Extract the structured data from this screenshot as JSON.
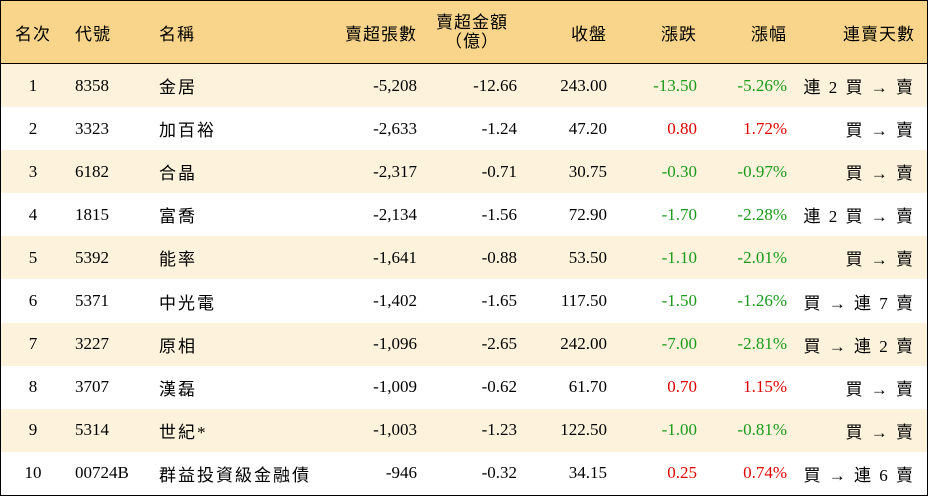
{
  "table": {
    "columns": [
      "名次",
      "代號",
      "名稱",
      "賣超張數",
      {
        "text": "賣超金額",
        "sub": "（億）"
      },
      "收盤",
      "漲跌",
      "漲幅",
      "連賣天數"
    ],
    "rows": [
      [
        "1",
        "8358",
        "金居",
        "-5,208",
        "-12.66",
        "243.00",
        "-13.50",
        "-5.26%",
        "連 2 買 → 賣"
      ],
      [
        "2",
        "3323",
        "加百裕",
        "-2,633",
        "-1.24",
        "47.20",
        "0.80",
        "1.72%",
        "買 → 賣"
      ],
      [
        "3",
        "6182",
        "合晶",
        "-2,317",
        "-0.71",
        "30.75",
        "-0.30",
        "-0.97%",
        "買 → 賣"
      ],
      [
        "4",
        "1815",
        "富喬",
        "-2,134",
        "-1.56",
        "72.90",
        "-1.70",
        "-2.28%",
        "連 2 買 → 賣"
      ],
      [
        "5",
        "5392",
        "能率",
        "-1,641",
        "-0.88",
        "53.50",
        "-1.10",
        "-2.01%",
        "買 → 賣"
      ],
      [
        "6",
        "5371",
        "中光電",
        "-1,402",
        "-1.65",
        "117.50",
        "-1.50",
        "-1.26%",
        "買 → 連 7 賣"
      ],
      [
        "7",
        "3227",
        "原相",
        "-1,096",
        "-2.65",
        "242.00",
        "-7.00",
        "-2.81%",
        "買 → 連 2 賣"
      ],
      [
        "8",
        "3707",
        "漢磊",
        "-1,009",
        "-0.62",
        "61.70",
        "0.70",
        "1.15%",
        "買 → 賣"
      ],
      [
        "9",
        "5314",
        "世紀*",
        "-1,003",
        "-1.23",
        "122.50",
        "-1.00",
        "-0.81%",
        "買 → 賣"
      ],
      [
        "10",
        "00724B",
        "群益投資級金融債",
        "-946",
        "-0.32",
        "34.15",
        "0.25",
        "0.74%",
        "買 → 連 6 賣"
      ]
    ]
  }
}
